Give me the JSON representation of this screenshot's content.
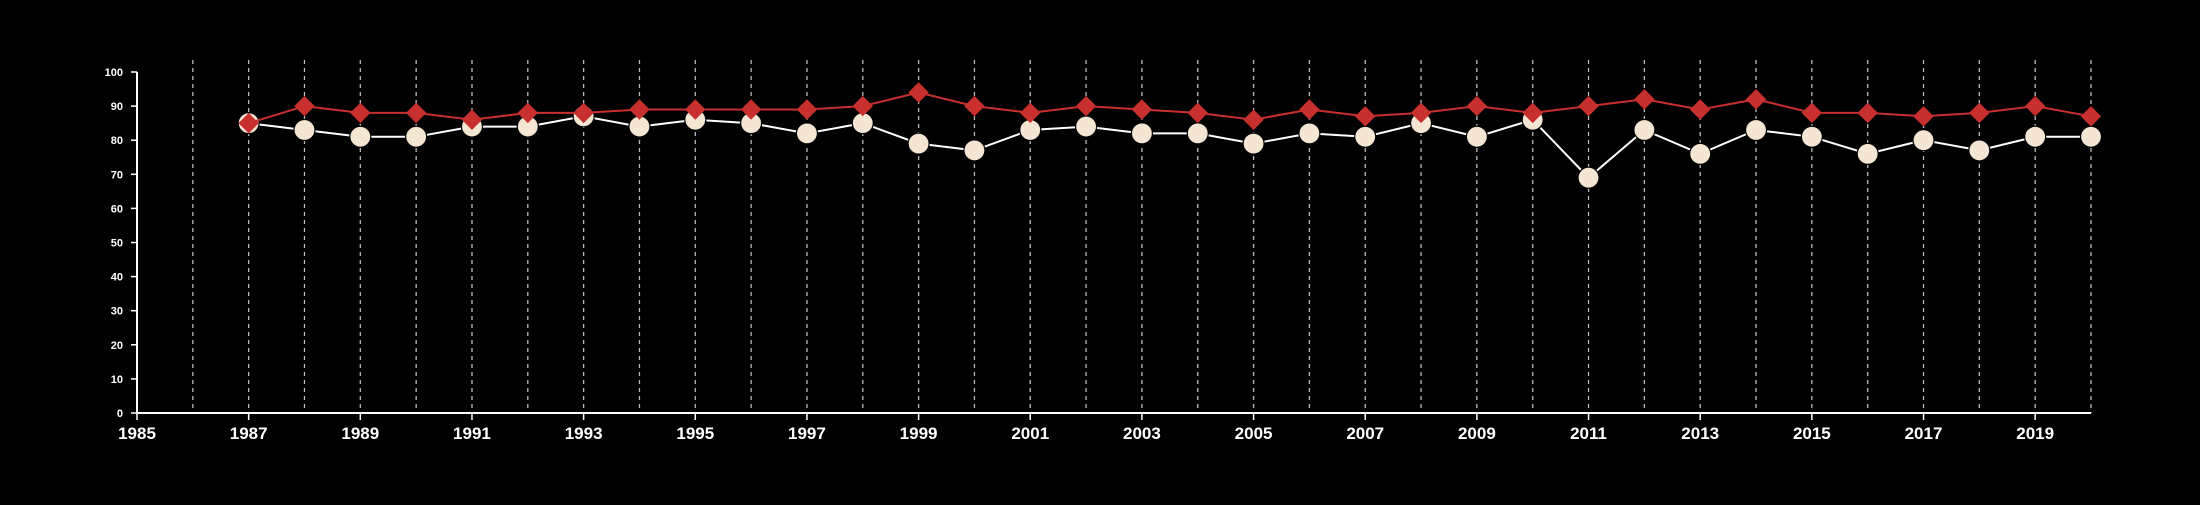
{
  "chart_data": {
    "type": "line",
    "title": "",
    "xlabel": "",
    "ylabel": "",
    "xlim": [
      1985,
      2020
    ],
    "ylim": [
      0,
      100
    ],
    "yticks": [
      0,
      10,
      20,
      30,
      40,
      50,
      60,
      70,
      80,
      90,
      100
    ],
    "xticks": [
      1985,
      1987,
      1989,
      1991,
      1993,
      1995,
      1997,
      1999,
      2001,
      2003,
      2005,
      2007,
      2009,
      2011,
      2013,
      2015,
      2017,
      2019
    ],
    "vertical_gridlines": [
      1986,
      1987,
      1988,
      1989,
      1990,
      1991,
      1992,
      1993,
      1994,
      1995,
      1996,
      1997,
      1998,
      1999,
      2000,
      2001,
      2002,
      2003,
      2004,
      2005,
      2006,
      2007,
      2008,
      2009,
      2010,
      2011,
      2012,
      2013,
      2014,
      2015,
      2016,
      2017,
      2018,
      2019,
      2020
    ],
    "grid": "vertical dashed",
    "legend": "none",
    "x": [
      1987,
      1988,
      1989,
      1990,
      1991,
      1992,
      1993,
      1994,
      1995,
      1996,
      1997,
      1998,
      1999,
      2000,
      2001,
      2002,
      2003,
      2004,
      2005,
      2006,
      2007,
      2008,
      2009,
      2010,
      2011,
      2012,
      2013,
      2014,
      2015,
      2016,
      2017,
      2018,
      2019,
      2020
    ],
    "series": [
      {
        "marker": "circle",
        "color": "#f5e6d3",
        "line_color": "#ffffff",
        "values": [
          85,
          83,
          81,
          81,
          84,
          84,
          87,
          84,
          86,
          85,
          82,
          85,
          79,
          77,
          83,
          84,
          82,
          82,
          79,
          82,
          81,
          85,
          81,
          86,
          69,
          83,
          76,
          83,
          81,
          76,
          80,
          77,
          81,
          81
        ]
      },
      {
        "marker": "diamond",
        "color": "#c8302f",
        "line_color": "#c8302f",
        "values": [
          85,
          90,
          88,
          88,
          86,
          88,
          88,
          89,
          89,
          89,
          89,
          90,
          94,
          90,
          88,
          90,
          89,
          88,
          86,
          89,
          87,
          88,
          90,
          88,
          90,
          92,
          89,
          92,
          88,
          88,
          87,
          88,
          90,
          87
        ]
      }
    ]
  }
}
